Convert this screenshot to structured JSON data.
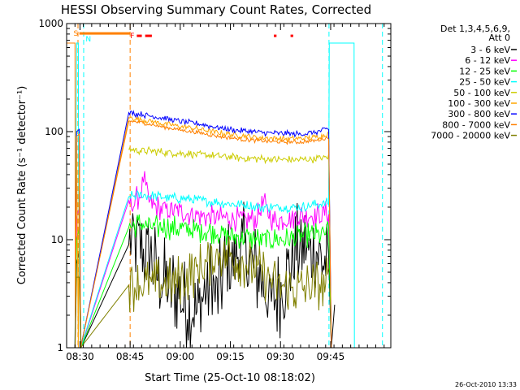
{
  "chart_data": {
    "type": "line",
    "title": "HESSI Observing Summary Count Rates, Corrected",
    "xlabel": "Start Time (25-Oct-10 08:18:02)",
    "ylabel": "Corrected Count Rate (s⁻¹ detector⁻¹)",
    "ylog": true,
    "xlim_minutes": [
      8.0,
      105.0
    ],
    "ylim": [
      1,
      1000
    ],
    "x_ticks": [
      {
        "label": "08:30",
        "minute": 12.0
      },
      {
        "label": "08:45",
        "minute": 27.0
      },
      {
        "label": "09:00",
        "minute": 42.0
      },
      {
        "label": "09:15",
        "minute": 57.0
      },
      {
        "label": "09:30",
        "minute": 72.0
      },
      {
        "label": "09:45",
        "minute": 87.0
      }
    ],
    "y_ticks": [
      {
        "label": "1",
        "value": 1
      },
      {
        "label": "10",
        "value": 10
      },
      {
        "label": "100",
        "value": 100
      },
      {
        "label": "1000",
        "value": 1000
      }
    ],
    "legend_header": [
      "Det 1,3,4,5,6,9,",
      "Att 0"
    ],
    "legend_position": "top-right, outside plot",
    "series": [
      {
        "name": "3 - 6 keV",
        "color": "#000000",
        "base": 7.0,
        "noise": 0.45,
        "points": [
          [
            10.5,
            1.0
          ],
          [
            11.0,
            6
          ],
          [
            11.8,
            8
          ],
          [
            12.3,
            1.0
          ],
          [
            26.6,
            9
          ],
          [
            29,
            10
          ],
          [
            31,
            7
          ],
          [
            33,
            7
          ],
          [
            35,
            5
          ],
          [
            37,
            4
          ],
          [
            39,
            3.5
          ],
          [
            41,
            3.5
          ],
          [
            43,
            2.5
          ],
          [
            45,
            2.5
          ],
          [
            47,
            2
          ],
          [
            49,
            3
          ],
          [
            51,
            4
          ],
          [
            53,
            3
          ],
          [
            55,
            5
          ],
          [
            57,
            6
          ],
          [
            59,
            8
          ],
          [
            61,
            8
          ],
          [
            63,
            6
          ],
          [
            65,
            5
          ],
          [
            67,
            4
          ],
          [
            69,
            2.5
          ],
          [
            71,
            3
          ],
          [
            73,
            4
          ],
          [
            75,
            6
          ],
          [
            77,
            8
          ],
          [
            79,
            9
          ],
          [
            81,
            7
          ],
          [
            83,
            8
          ],
          [
            85,
            6
          ],
          [
            86.4,
            5.5
          ],
          [
            87.2,
            1.0
          ],
          [
            88.2,
            2.5
          ]
        ]
      },
      {
        "name": "6 - 12 keV",
        "color": "#ff00ff",
        "base": 18,
        "noise": 0.12,
        "points": [
          [
            10.5,
            1.0
          ],
          [
            11.0,
            16
          ],
          [
            11.8,
            20
          ],
          [
            12.3,
            1.0
          ],
          [
            26.6,
            23
          ],
          [
            28,
            21
          ],
          [
            29,
            24
          ],
          [
            30,
            26
          ],
          [
            31,
            38
          ],
          [
            32,
            26
          ],
          [
            33,
            21
          ],
          [
            35,
            20
          ],
          [
            38,
            19
          ],
          [
            42,
            18
          ],
          [
            47,
            17
          ],
          [
            52,
            16
          ],
          [
            57,
            16
          ],
          [
            62,
            15
          ],
          [
            65,
            16
          ],
          [
            67,
            22
          ],
          [
            68,
            18
          ],
          [
            70,
            15
          ],
          [
            75,
            16
          ],
          [
            80,
            17
          ],
          [
            84,
            17
          ],
          [
            86.4,
            18
          ],
          [
            87.2,
            1.0
          ]
        ]
      },
      {
        "name": "12 - 25 keV",
        "color": "#00ff00",
        "base": 11,
        "noise": 0.12,
        "points": [
          [
            10.5,
            1.0
          ],
          [
            11.0,
            10
          ],
          [
            11.8,
            13
          ],
          [
            12.3,
            1.0
          ],
          [
            26.6,
            13
          ],
          [
            30,
            14
          ],
          [
            34,
            13
          ],
          [
            40,
            13
          ],
          [
            46,
            12
          ],
          [
            52,
            12
          ],
          [
            57,
            11
          ],
          [
            62,
            10.5
          ],
          [
            66,
            10
          ],
          [
            70,
            10
          ],
          [
            75,
            10
          ],
          [
            80,
            11
          ],
          [
            84,
            11
          ],
          [
            86.4,
            12
          ],
          [
            87.2,
            1.0
          ]
        ]
      },
      {
        "name": "25 - 50 keV",
        "color": "#00ffff",
        "base": 24,
        "noise": 0.05,
        "points": [
          [
            10.5,
            1.0
          ],
          [
            11.0,
            660
          ],
          [
            11.5,
            660
          ],
          [
            11.6,
            24
          ],
          [
            12.2,
            1.0
          ],
          [
            26.6,
            25
          ],
          [
            30,
            26
          ],
          [
            36,
            25
          ],
          [
            42,
            24
          ],
          [
            48,
            23
          ],
          [
            54,
            22
          ],
          [
            60,
            21
          ],
          [
            66,
            20
          ],
          [
            72,
            20
          ],
          [
            78,
            20
          ],
          [
            82,
            21
          ],
          [
            86.4,
            22
          ],
          [
            86.6,
            660
          ],
          [
            94,
            660
          ],
          [
            94.1,
            1.0
          ]
        ]
      },
      {
        "name": "50 - 100 keV",
        "color": "#cccc00",
        "base": 62,
        "noise": 0.04,
        "points": [
          [
            26.6,
            68
          ],
          [
            30,
            67
          ],
          [
            36,
            65
          ],
          [
            42,
            63
          ],
          [
            48,
            61
          ],
          [
            54,
            59
          ],
          [
            60,
            57
          ],
          [
            66,
            56
          ],
          [
            72,
            55
          ],
          [
            78,
            55
          ],
          [
            82,
            56
          ],
          [
            86.4,
            58
          ]
        ]
      },
      {
        "name": "100 - 300 keV",
        "color": "#ffa500",
        "base": 100,
        "noise": 0.03,
        "points": [
          [
            10.5,
            1.0
          ],
          [
            11.0,
            80
          ],
          [
            11.5,
            1.0
          ],
          [
            11.8,
            95
          ],
          [
            12.2,
            1.0
          ],
          [
            26.6,
            135
          ],
          [
            30,
            130
          ],
          [
            36,
            120
          ],
          [
            42,
            112
          ],
          [
            48,
            105
          ],
          [
            54,
            97
          ],
          [
            60,
            92
          ],
          [
            66,
            88
          ],
          [
            72,
            86
          ],
          [
            78,
            86
          ],
          [
            82,
            88
          ],
          [
            86.4,
            96
          ],
          [
            87.2,
            1.0
          ]
        ]
      },
      {
        "name": "300 - 800 keV",
        "color": "#0000ff",
        "base": 110,
        "noise": 0.03,
        "points": [
          [
            10.5,
            1.0
          ],
          [
            11.0,
            100
          ],
          [
            11.8,
            105
          ],
          [
            12.2,
            1.0
          ],
          [
            26.6,
            150
          ],
          [
            30,
            145
          ],
          [
            36,
            135
          ],
          [
            42,
            125
          ],
          [
            48,
            117
          ],
          [
            54,
            108
          ],
          [
            60,
            102
          ],
          [
            66,
            98
          ],
          [
            72,
            96
          ],
          [
            78,
            95
          ],
          [
            82,
            98
          ],
          [
            86.4,
            106
          ],
          [
            87.2,
            1.0
          ]
        ]
      },
      {
        "name": "800 - 7000 keV",
        "color": "#ff8000",
        "base": 100,
        "noise": 0.02,
        "points": [
          [
            8,
            660
          ],
          [
            10.5,
            660
          ],
          [
            10.6,
            1.0
          ],
          [
            11.0,
            90
          ],
          [
            11.8,
            95
          ],
          [
            12.2,
            1.0
          ],
          [
            26.6,
            125
          ],
          [
            30,
            122
          ],
          [
            36,
            112
          ],
          [
            42,
            104
          ],
          [
            48,
            97
          ],
          [
            54,
            90
          ],
          [
            60,
            85
          ],
          [
            66,
            82
          ],
          [
            72,
            80
          ],
          [
            78,
            80
          ],
          [
            82,
            82
          ],
          [
            86.4,
            88
          ],
          [
            87.2,
            1.0
          ]
        ]
      },
      {
        "name": "7000 - 20000 keV",
        "color": "#808000",
        "base": 4,
        "noise": 0.25,
        "points": [
          [
            10.5,
            1.0
          ],
          [
            11.0,
            4.5
          ],
          [
            11.8,
            4.5
          ],
          [
            12.2,
            1.0
          ],
          [
            26.6,
            3.8
          ],
          [
            34,
            3.8
          ],
          [
            40,
            4
          ],
          [
            46,
            5
          ],
          [
            50,
            6
          ],
          [
            54,
            7.5
          ],
          [
            58,
            7
          ],
          [
            62,
            6
          ],
          [
            66,
            5
          ],
          [
            70,
            4
          ],
          [
            74,
            3.5
          ],
          [
            78,
            3.5
          ],
          [
            82,
            3.8
          ],
          [
            86.4,
            4
          ]
        ]
      }
    ],
    "flare_markers": {
      "color": "#ff0000",
      "label": "F",
      "label_minute": 28.0,
      "segments": [
        [
          29.0,
          30.5
        ],
        [
          31.5,
          33.5
        ],
        [
          70.0,
          70.8
        ],
        [
          75.0,
          75.8
        ]
      ],
      "level": 770
    },
    "saa_markers": {
      "color": "#ff8000",
      "label": "S",
      "label_minute": 10.8,
      "bar": [
        11.8,
        27.0
      ],
      "level": 810
    },
    "night_markers": {
      "color": "#00ffff",
      "label": "N",
      "label_minute": 13.2
    },
    "vlines": [
      {
        "minute": 11.4,
        "color": "#ff8000"
      },
      {
        "minute": 27.0,
        "color": "#ff8000"
      },
      {
        "minute": 13.1,
        "color": "#00ffff"
      },
      {
        "minute": 86.5,
        "color": "#00ffff"
      },
      {
        "minute": 102.5,
        "color": "#00ffff"
      }
    ]
  },
  "footer": {
    "timestamp": "26-Oct-2010 13:33"
  }
}
